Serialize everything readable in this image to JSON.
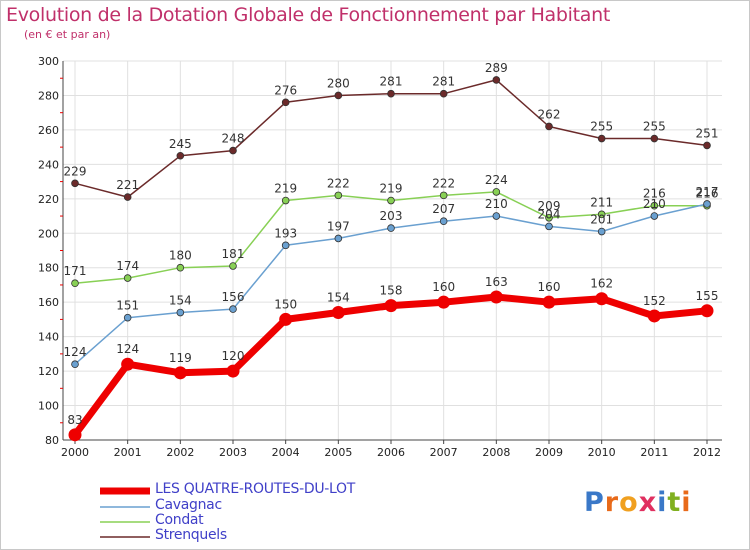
{
  "title": "Evolution de la Dotation Globale de Fonctionnement par Habitant",
  "subtitle": "(en € et par an)",
  "logo_text": "Proxiti",
  "chart_data": {
    "type": "line",
    "x": [
      "2000",
      "2001",
      "2002",
      "2003",
      "2004",
      "2005",
      "2006",
      "2007",
      "2008",
      "2009",
      "2010",
      "2011",
      "2012"
    ],
    "ylim": [
      80,
      300
    ],
    "yticks": [
      80,
      100,
      120,
      140,
      160,
      180,
      200,
      220,
      240,
      260,
      280,
      300
    ],
    "grid": true,
    "legend_position": "bottom-left",
    "series": [
      {
        "name": "LES QUATRE-ROUTES-DU-LOT",
        "color": "#ee0000",
        "values": [
          83,
          124,
          119,
          120,
          150,
          154,
          158,
          160,
          163,
          160,
          162,
          152,
          155
        ]
      },
      {
        "name": "Cavagnac",
        "color": "#6aa0d0",
        "values": [
          124,
          151,
          154,
          156,
          193,
          197,
          203,
          207,
          210,
          204,
          201,
          210,
          217
        ]
      },
      {
        "name": "Condat",
        "color": "#88d055",
        "values": [
          171,
          174,
          180,
          181,
          219,
          222,
          219,
          222,
          224,
          209,
          211,
          216,
          216
        ]
      },
      {
        "name": "Strenquels",
        "color": "#6b2a2a",
        "values": [
          229,
          221,
          245,
          248,
          276,
          280,
          281,
          281,
          289,
          262,
          255,
          255,
          251
        ]
      }
    ]
  }
}
